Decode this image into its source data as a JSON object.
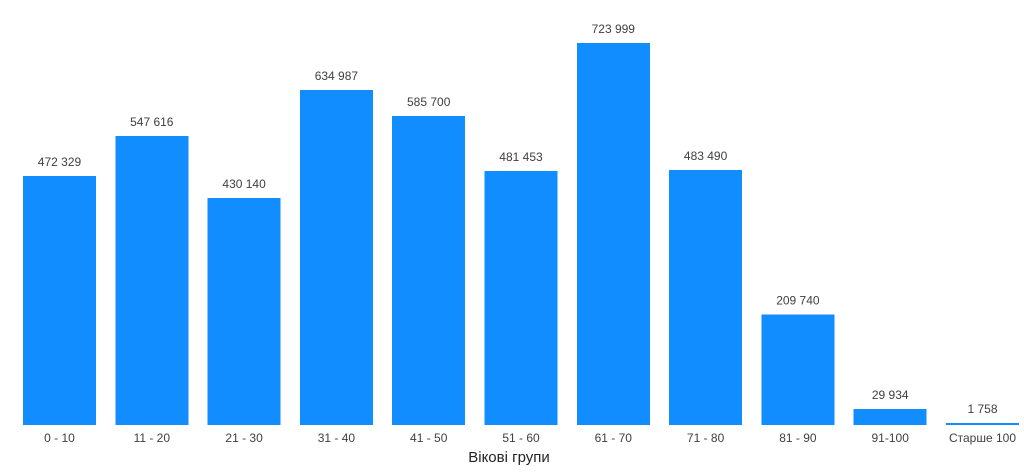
{
  "chart_data": {
    "type": "bar",
    "title": "",
    "xlabel": "Вікові групи",
    "ylabel": "",
    "categories": [
      "0 - 10",
      "11 - 20",
      "21 - 30",
      "31 - 40",
      "41 - 50",
      "51 - 60",
      "61 - 70",
      "71 - 80",
      "81 - 90",
      "91-100",
      "Старше 100"
    ],
    "values": [
      472329,
      547616,
      430140,
      634987,
      585700,
      481453,
      723999,
      483490,
      209740,
      29934,
      1758
    ],
    "value_labels": [
      "472 329",
      "547 616",
      "430 140",
      "634 987",
      "585 700",
      "481 453",
      "723 999",
      "483 490",
      "209 740",
      "29 934",
      "1 758"
    ],
    "ylim": [
      0,
      723999
    ],
    "grid": false,
    "legend": "none",
    "bar_color": "#118DFF"
  }
}
